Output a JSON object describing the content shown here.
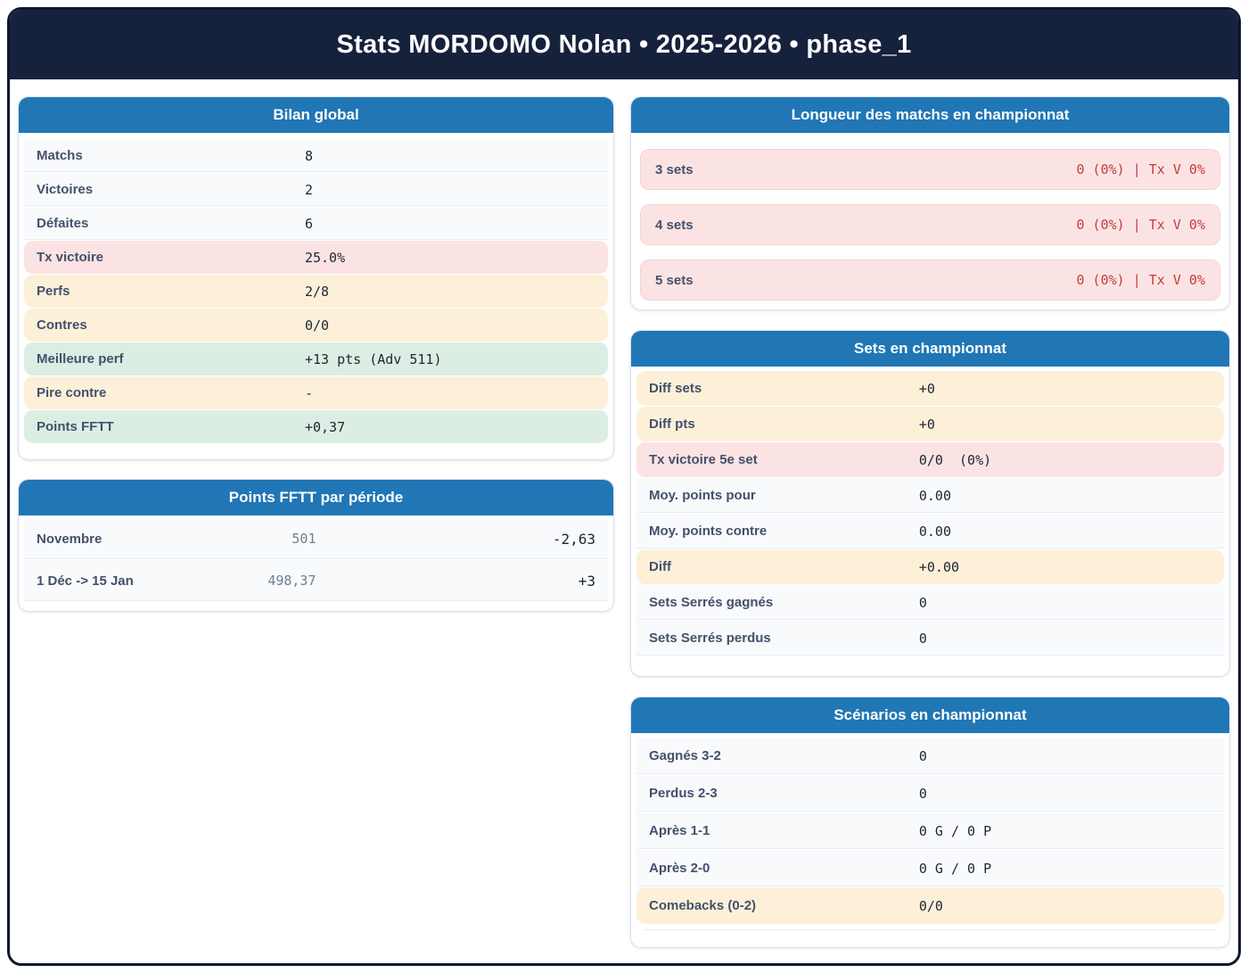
{
  "title": "Stats MORDOMO Nolan • 2025-2026 • phase_1",
  "colors": {
    "header_navy": "#16213c",
    "accent_blue": "#2176b5",
    "pink_bg": "#fce3e3",
    "yellow_bg": "#fcf0d9",
    "green_bg": "#dceee3",
    "red_text": "#c23d3d"
  },
  "bilan": {
    "title": "Bilan global",
    "rows": [
      {
        "label": "Matchs",
        "value": "8",
        "style": "plain"
      },
      {
        "label": "Victoires",
        "value": "2",
        "style": "plain"
      },
      {
        "label": "Défaites",
        "value": "6",
        "style": "plain"
      },
      {
        "label": "Tx victoire",
        "value": "25.0%",
        "style": "pink"
      },
      {
        "label": "Perfs",
        "value": "2/8",
        "style": "yellow"
      },
      {
        "label": "Contres",
        "value": "0/0",
        "style": "yellow"
      },
      {
        "label": "Meilleure perf",
        "value": "+13 pts (Adv 511)",
        "style": "green"
      },
      {
        "label": "Pire contre",
        "value": "-",
        "style": "yellow"
      },
      {
        "label": "Points FFTT",
        "value": "+0,37",
        "style": "green"
      }
    ]
  },
  "periodes": {
    "title": "Points FFTT par période",
    "rows": [
      {
        "label": "Novembre",
        "points": "501",
        "delta": "-2,63"
      },
      {
        "label": "1 Déc -> 15 Jan",
        "points": "498,37",
        "delta": "+3"
      }
    ]
  },
  "longueur": {
    "title": "Longueur des matchs en championnat",
    "rows": [
      {
        "label": "3 sets",
        "value": "0 (0%) | Tx V 0%"
      },
      {
        "label": "4 sets",
        "value": "0 (0%) | Tx V 0%"
      },
      {
        "label": "5 sets",
        "value": "0 (0%) | Tx V 0%"
      }
    ]
  },
  "sets": {
    "title": "Sets en championnat",
    "rows": [
      {
        "label": "Diff sets",
        "value": "+0",
        "style": "yellow"
      },
      {
        "label": "Diff pts",
        "value": "+0",
        "style": "yellow"
      },
      {
        "label": "Tx victoire 5e set",
        "value": "0/0  (0%)",
        "style": "pink"
      },
      {
        "label": "Moy. points pour",
        "value": "0.00",
        "style": "plain"
      },
      {
        "label": "Moy. points contre",
        "value": "0.00",
        "style": "plain"
      },
      {
        "label": "Diff",
        "value": "+0.00",
        "style": "yellow"
      },
      {
        "label": "Sets Serrés gagnés",
        "value": "0",
        "style": "plain"
      },
      {
        "label": "Sets Serrés perdus",
        "value": "0",
        "style": "plain"
      }
    ]
  },
  "scenarios": {
    "title": "Scénarios en championnat",
    "rows": [
      {
        "label": "Gagnés 3-2",
        "value": "0",
        "style": "plain"
      },
      {
        "label": "Perdus 2-3",
        "value": "0",
        "style": "plain"
      },
      {
        "label": "Après 1-1",
        "value": "0 G / 0 P",
        "style": "plain"
      },
      {
        "label": "Après 2-0",
        "value": "0 G / 0 P",
        "style": "plain"
      },
      {
        "label": "Comebacks (0-2)",
        "value": "0/0",
        "style": "yellow"
      }
    ]
  }
}
